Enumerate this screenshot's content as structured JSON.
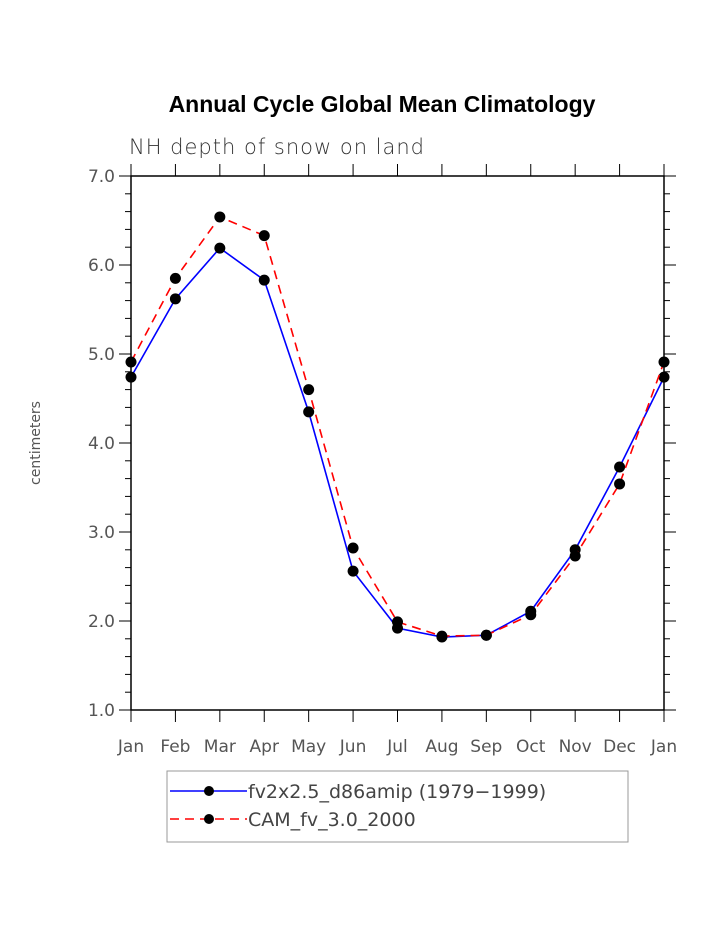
{
  "chart_data": {
    "type": "line",
    "title": "Annual Cycle Global Mean Climatology",
    "subtitle": "NH depth of snow on land",
    "xlabel": "",
    "ylabel": "centimeters",
    "categories": [
      "Jan",
      "Feb",
      "Mar",
      "Apr",
      "May",
      "Jun",
      "Jul",
      "Aug",
      "Sep",
      "Oct",
      "Nov",
      "Dec",
      "Jan"
    ],
    "ylim": [
      1.0,
      7.0
    ],
    "yticks": [
      "1.0",
      "2.0",
      "3.0",
      "4.0",
      "5.0",
      "6.0",
      "7.0"
    ],
    "grid": false,
    "legend_position": "bottom-center",
    "series": [
      {
        "name": "fv2x2.5_d86amip (1979−1999)",
        "color": "#0000ff",
        "dash": "solid",
        "marker": "filled-circle",
        "values": [
          4.74,
          5.62,
          6.19,
          5.83,
          4.35,
          2.56,
          1.92,
          1.82,
          1.84,
          2.11,
          2.8,
          3.73,
          4.74
        ]
      },
      {
        "name": "CAM_fv_3.0_2000",
        "color": "#ff0000",
        "dash": "dashed",
        "marker": "filled-circle",
        "values": [
          4.91,
          5.85,
          6.54,
          6.33,
          4.6,
          2.82,
          1.99,
          1.83,
          1.84,
          2.07,
          2.73,
          3.54,
          4.91
        ]
      }
    ]
  }
}
